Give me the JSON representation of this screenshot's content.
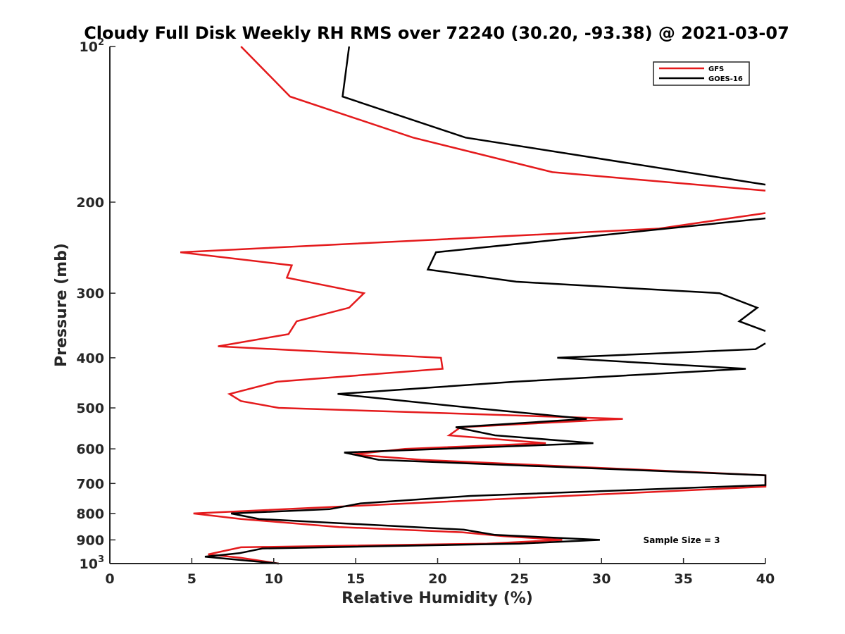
{
  "chart_data": {
    "type": "line",
    "title": "Cloudy Full Disk Weekly RH RMS over 72240 (30.20, -93.38) @ 2021-03-07",
    "xlabel": "Relative Humidity (%)",
    "ylabel": "Pressure (mb)",
    "xlim": [
      0,
      40
    ],
    "ylim": [
      100,
      1000
    ],
    "yscale": "log",
    "yreversed": true,
    "xticks": [
      0,
      5,
      10,
      15,
      20,
      25,
      30,
      35,
      40
    ],
    "xtick_labels": [
      "0",
      "5",
      "10",
      "15",
      "20",
      "25",
      "30",
      "35",
      "40"
    ],
    "yticks": [
      100,
      200,
      300,
      400,
      500,
      600,
      700,
      800,
      900,
      1000
    ],
    "ytick_labels": [
      {
        "base": "10",
        "exp": "2"
      },
      {
        "base": "200"
      },
      {
        "base": "300"
      },
      {
        "base": "400"
      },
      {
        "base": "500"
      },
      {
        "base": "600"
      },
      {
        "base": "700"
      },
      {
        "base": "800"
      },
      {
        "base": "900"
      },
      {
        "base": "10",
        "exp": "3"
      }
    ],
    "legend": {
      "location": "top-right"
    },
    "annotation": "Sample Size = 3",
    "series": [
      {
        "name": "GFS",
        "color": "#e41a1c",
        "points": [
          [
            8.0,
            100
          ],
          [
            11.0,
            125
          ],
          [
            18.5,
            150
          ],
          [
            27.0,
            175
          ],
          [
            40.0,
            190
          ],
          [
            null,
            null
          ],
          [
            40.0,
            210
          ],
          [
            33.5,
            225
          ],
          [
            4.3,
            250
          ],
          [
            11.1,
            265
          ],
          [
            10.8,
            280
          ],
          [
            15.5,
            300
          ],
          [
            14.6,
            320
          ],
          [
            11.4,
            340
          ],
          [
            10.9,
            360
          ],
          [
            6.6,
            380
          ],
          [
            20.2,
            400
          ],
          [
            20.3,
            420
          ],
          [
            10.2,
            445
          ],
          [
            7.3,
            470
          ],
          [
            8.0,
            485
          ],
          [
            10.3,
            500
          ],
          [
            31.3,
            525
          ],
          [
            21.4,
            545
          ],
          [
            20.7,
            565
          ],
          [
            26.6,
            585
          ],
          [
            18.0,
            600
          ],
          [
            14.8,
            615
          ],
          [
            19.0,
            630
          ],
          [
            40.0,
            675
          ],
          [
            40.0,
            710
          ],
          [
            5.1,
            800
          ],
          [
            8.0,
            820
          ],
          [
            14.0,
            850
          ],
          [
            21.5,
            870
          ],
          [
            24.0,
            885
          ],
          [
            27.6,
            900
          ],
          [
            23.0,
            915
          ],
          [
            8.0,
            930
          ],
          [
            6.0,
            960
          ],
          [
            8.0,
            975
          ],
          [
            10.3,
            1000
          ]
        ]
      },
      {
        "name": "GOES-16",
        "color": "#000000",
        "points": [
          [
            14.6,
            100
          ],
          [
            14.2,
            125
          ],
          [
            21.7,
            150
          ],
          [
            40.0,
            185
          ],
          [
            null,
            null
          ],
          [
            40.0,
            215
          ],
          [
            19.9,
            250
          ],
          [
            19.4,
            270
          ],
          [
            24.8,
            285
          ],
          [
            37.2,
            300
          ],
          [
            39.5,
            320
          ],
          [
            38.4,
            340
          ],
          [
            40.0,
            355
          ],
          [
            null,
            null
          ],
          [
            40.0,
            375
          ],
          [
            39.4,
            385
          ],
          [
            27.3,
            400
          ],
          [
            38.8,
            420
          ],
          [
            24.7,
            445
          ],
          [
            13.9,
            470
          ],
          [
            22.1,
            500
          ],
          [
            29.1,
            525
          ],
          [
            21.1,
            545
          ],
          [
            23.5,
            565
          ],
          [
            29.5,
            585
          ],
          [
            14.3,
            610
          ],
          [
            16.4,
            630
          ],
          [
            40.0,
            675
          ],
          [
            40.0,
            705
          ],
          [
            22.0,
            740
          ],
          [
            15.3,
            765
          ],
          [
            13.4,
            785
          ],
          [
            7.4,
            800
          ],
          [
            9.1,
            820
          ],
          [
            21.6,
            860
          ],
          [
            23.5,
            880
          ],
          [
            29.9,
            900
          ],
          [
            25.0,
            915
          ],
          [
            9.3,
            935
          ],
          [
            7.9,
            955
          ],
          [
            5.8,
            970
          ],
          [
            10.3,
            1000
          ]
        ]
      }
    ]
  }
}
